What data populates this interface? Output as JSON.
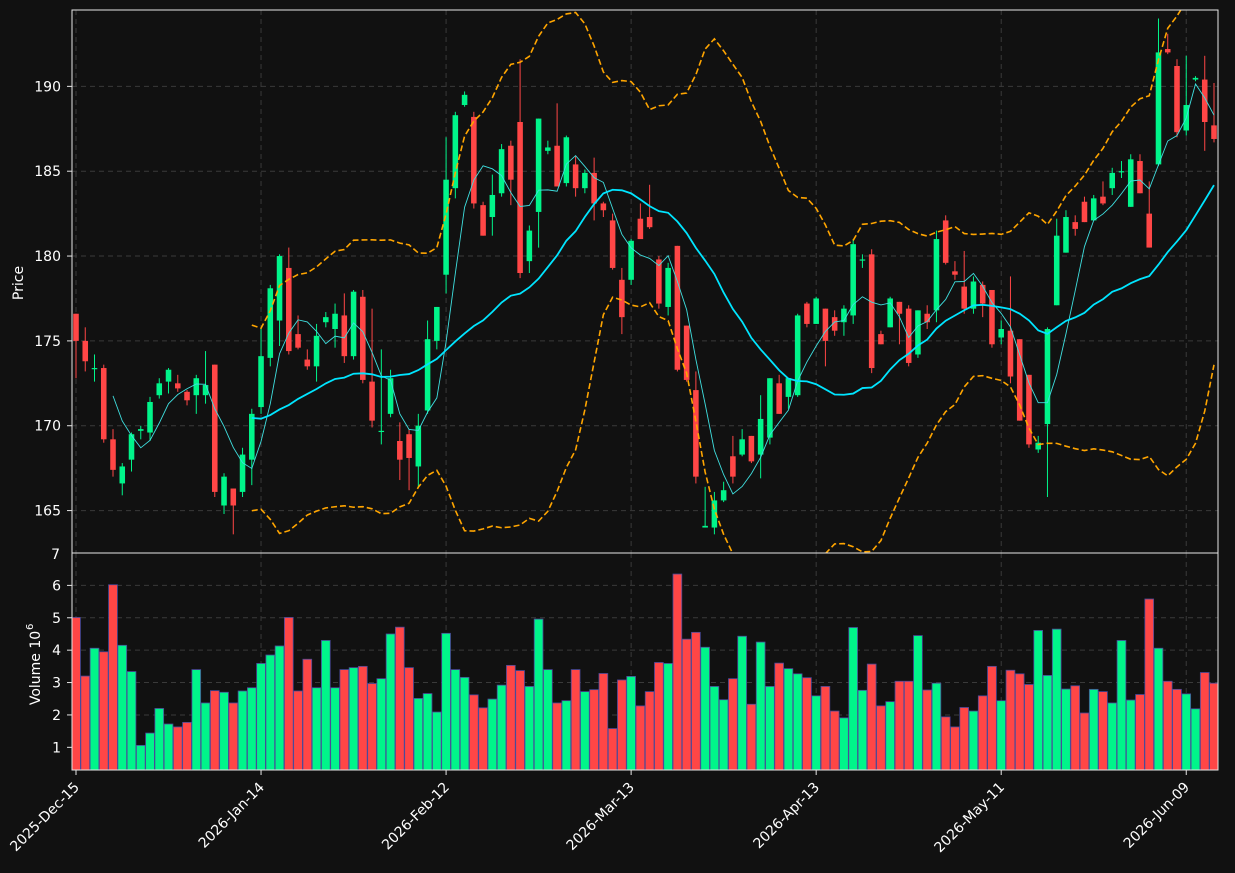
{
  "chart_data": {
    "type": "candlestick",
    "up_color": "#00f58a",
    "down_color": "#ff4646",
    "sma_fast_color": "#3fe0e0",
    "sma_slow_color": "#00e5ff",
    "bollinger_color": "#ffa500",
    "price_panel": {
      "ylabel": "Price",
      "ylim": [
        162.5,
        194.5
      ],
      "yticks": [
        165,
        170,
        175,
        180,
        185,
        190
      ],
      "overflow_tick": "7"
    },
    "volume_panel": {
      "ylabel": "Volume  10",
      "ylabel_exponent": "6",
      "ylim": [
        0.3,
        7.0
      ],
      "yticks": [
        1,
        2,
        3,
        4,
        5,
        6
      ]
    },
    "x_ticks": [
      {
        "label": "2025-Dec-15",
        "index": 0
      },
      {
        "label": "2026-Jan-14",
        "index": 20
      },
      {
        "label": "2026-Feb-12",
        "index": 40
      },
      {
        "label": "2026-Mar-13",
        "index": 60
      },
      {
        "label": "2026-Apr-13",
        "index": 80
      },
      {
        "label": "2026-May-11",
        "index": 100
      },
      {
        "label": "2026-Jun-09",
        "index": 120
      }
    ],
    "ohlc": [
      [
        176.6,
        176.6,
        172.8,
        175.0
      ],
      [
        175.0,
        175.8,
        173.2,
        173.8
      ],
      [
        173.4,
        174.2,
        172.6,
        173.4
      ],
      [
        173.4,
        173.6,
        169.0,
        169.2
      ],
      [
        169.2,
        169.8,
        167.0,
        167.4
      ],
      [
        166.6,
        167.8,
        165.9,
        167.6
      ],
      [
        168.0,
        169.6,
        167.3,
        169.5
      ],
      [
        169.7,
        170.0,
        169.2,
        169.8
      ],
      [
        169.6,
        171.7,
        169.1,
        171.4
      ],
      [
        171.8,
        172.8,
        171.6,
        172.5
      ],
      [
        172.6,
        173.4,
        171.9,
        173.3
      ],
      [
        172.5,
        173.0,
        172.0,
        172.2
      ],
      [
        172.0,
        172.1,
        171.2,
        171.5
      ],
      [
        171.8,
        173.0,
        170.7,
        172.8
      ],
      [
        171.8,
        174.4,
        171.3,
        172.4
      ],
      [
        173.6,
        173.6,
        165.8,
        166.1
      ],
      [
        165.3,
        167.2,
        164.8,
        167.0
      ],
      [
        166.3,
        166.3,
        163.6,
        165.3
      ],
      [
        166.1,
        168.7,
        165.8,
        168.3
      ],
      [
        168.0,
        171.0,
        166.5,
        170.7
      ],
      [
        171.1,
        175.8,
        170.7,
        174.1
      ],
      [
        174.0,
        178.3,
        173.5,
        178.1
      ],
      [
        176.2,
        180.1,
        174.7,
        180.0
      ],
      [
        179.3,
        180.5,
        174.2,
        174.4
      ],
      [
        175.4,
        176.5,
        174.5,
        174.6
      ],
      [
        173.9,
        174.5,
        173.3,
        173.5
      ],
      [
        173.5,
        176.0,
        172.6,
        175.3
      ],
      [
        176.1,
        176.7,
        175.8,
        176.4
      ],
      [
        175.7,
        177.2,
        174.6,
        176.6
      ],
      [
        176.5,
        177.8,
        173.7,
        174.1
      ],
      [
        174.1,
        178.0,
        173.9,
        177.9
      ],
      [
        177.6,
        178.0,
        172.5,
        172.7
      ],
      [
        172.6,
        176.9,
        169.9,
        170.3
      ],
      [
        169.7,
        174.5,
        168.9,
        169.7
      ],
      [
        170.7,
        173.3,
        170.5,
        172.8
      ],
      [
        169.1,
        170.2,
        166.8,
        168.0
      ],
      [
        169.5,
        169.8,
        166.2,
        168.1
      ],
      [
        167.6,
        170.7,
        166.4,
        170.0
      ],
      [
        170.9,
        176.2,
        170.7,
        175.1
      ],
      [
        175.0,
        177.0,
        174.5,
        177.0
      ],
      [
        178.9,
        187.0,
        177.8,
        184.5
      ],
      [
        184.0,
        188.5,
        183.4,
        188.3
      ],
      [
        188.9,
        189.7,
        188.8,
        189.5
      ],
      [
        188.2,
        188.5,
        182.8,
        183.1
      ],
      [
        183.0,
        183.2,
        181.2,
        181.2
      ],
      [
        182.3,
        184.8,
        181.2,
        183.6
      ],
      [
        183.7,
        186.6,
        183.5,
        186.3
      ],
      [
        186.5,
        186.8,
        183.0,
        184.5
      ],
      [
        187.9,
        191.6,
        178.7,
        179.0
      ],
      [
        179.7,
        181.8,
        179.0,
        181.5
      ],
      [
        182.6,
        188.1,
        180.5,
        188.1
      ],
      [
        186.2,
        186.8,
        186.0,
        186.4
      ],
      [
        186.5,
        189.0,
        184.1,
        184.1
      ],
      [
        184.3,
        187.1,
        184.1,
        187.0
      ],
      [
        185.4,
        185.9,
        183.5,
        184.0
      ],
      [
        184.0,
        185.1,
        183.7,
        184.9
      ],
      [
        184.9,
        185.8,
        182.1,
        183.1
      ],
      [
        183.1,
        183.2,
        182.3,
        182.7
      ],
      [
        182.1,
        182.5,
        179.2,
        179.3
      ],
      [
        178.6,
        179.3,
        175.4,
        176.4
      ],
      [
        178.6,
        181.0,
        178.3,
        180.9
      ],
      [
        182.2,
        183.1,
        181.1,
        181.0
      ],
      [
        182.3,
        184.2,
        181.6,
        181.7
      ],
      [
        179.8,
        180.0,
        176.9,
        177.2
      ],
      [
        177.0,
        179.6,
        176.5,
        179.3
      ],
      [
        180.6,
        180.6,
        173.2,
        173.3
      ],
      [
        175.9,
        175.9,
        172.6,
        172.7
      ],
      [
        172.1,
        173.2,
        166.6,
        167.0
      ],
      [
        164.0,
        166.4,
        164.0,
        164.1
      ],
      [
        164.0,
        166.1,
        163.6,
        165.6
      ],
      [
        165.6,
        166.7,
        165.5,
        166.2
      ],
      [
        168.2,
        169.4,
        166.6,
        167.0
      ],
      [
        168.3,
        169.8,
        168.2,
        169.2
      ],
      [
        169.4,
        169.4,
        167.8,
        167.9
      ],
      [
        168.3,
        171.8,
        166.9,
        170.4
      ],
      [
        169.3,
        172.8,
        168.9,
        172.8
      ],
      [
        172.5,
        173.0,
        170.7,
        170.7
      ],
      [
        171.7,
        172.8,
        171.0,
        172.8
      ],
      [
        171.8,
        176.6,
        171.7,
        176.5
      ],
      [
        177.2,
        177.3,
        175.8,
        176.0
      ],
      [
        176.0,
        177.6,
        176.0,
        177.5
      ],
      [
        176.9,
        176.9,
        173.5,
        175.0
      ],
      [
        176.4,
        176.8,
        175.3,
        175.6
      ],
      [
        176.1,
        177.1,
        175.3,
        176.9
      ],
      [
        176.5,
        181.0,
        176.0,
        180.7
      ],
      [
        179.8,
        180.1,
        179.3,
        179.8
      ],
      [
        180.1,
        180.4,
        173.1,
        173.4
      ],
      [
        175.4,
        175.6,
        174.8,
        174.8
      ],
      [
        175.8,
        177.6,
        175.8,
        177.5
      ],
      [
        177.3,
        177.3,
        174.8,
        176.6
      ],
      [
        176.9,
        177.1,
        173.5,
        173.7
      ],
      [
        174.2,
        176.8,
        174.0,
        176.8
      ],
      [
        176.6,
        177.1,
        175.7,
        176.1
      ],
      [
        176.8,
        181.5,
        176.1,
        181.0
      ],
      [
        182.1,
        182.4,
        179.5,
        179.6
      ],
      [
        179.1,
        179.7,
        178.6,
        178.9
      ],
      [
        178.2,
        180.3,
        176.6,
        176.9
      ],
      [
        176.9,
        178.8,
        176.6,
        178.5
      ],
      [
        178.3,
        178.5,
        176.4,
        177.2
      ],
      [
        178.0,
        178.0,
        174.6,
        174.8
      ],
      [
        175.2,
        176.2,
        174.8,
        175.7
      ],
      [
        175.6,
        178.8,
        172.5,
        172.9
      ],
      [
        175.1,
        175.1,
        170.3,
        170.3
      ],
      [
        173.0,
        173.0,
        168.7,
        168.9
      ],
      [
        168.6,
        169.4,
        168.4,
        169.0
      ],
      [
        170.1,
        175.8,
        165.8,
        175.7
      ],
      [
        177.1,
        182.2,
        177.1,
        181.2
      ],
      [
        180.2,
        182.7,
        180.2,
        182.3
      ],
      [
        182.0,
        182.4,
        181.2,
        181.6
      ],
      [
        183.2,
        183.5,
        182.0,
        182.0
      ],
      [
        182.1,
        183.6,
        182.1,
        183.4
      ],
      [
        183.5,
        184.4,
        183.0,
        183.1
      ],
      [
        184.0,
        185.2,
        183.6,
        184.9
      ],
      [
        185.0,
        185.6,
        184.6,
        185.0
      ],
      [
        182.9,
        186.0,
        182.9,
        185.7
      ],
      [
        185.6,
        186.0,
        183.7,
        183.7
      ],
      [
        182.5,
        184.4,
        180.5,
        180.5
      ],
      [
        185.4,
        194.0,
        185.3,
        192.0
      ],
      [
        192.2,
        193.1,
        191.9,
        192.0
      ],
      [
        191.2,
        191.6,
        187.0,
        187.3
      ],
      [
        187.4,
        191.8,
        187.1,
        188.9
      ],
      [
        190.4,
        190.6,
        190.3,
        190.5
      ],
      [
        190.4,
        191.8,
        186.2,
        187.9
      ],
      [
        187.7,
        190.2,
        186.7,
        186.9
      ]
    ],
    "volume_millions": [
      5.01,
      3.2,
      4.06,
      3.95,
      6.02,
      4.15,
      3.34,
      1.06,
      1.44,
      2.2,
      1.72,
      1.63,
      1.77,
      3.4,
      2.37,
      2.75,
      2.7,
      2.37,
      2.74,
      2.84,
      3.59,
      3.85,
      4.13,
      5.01,
      2.74,
      3.72,
      2.84,
      4.3,
      2.84,
      3.4,
      3.46,
      3.5,
      2.97,
      3.12,
      4.5,
      4.71,
      3.46,
      2.51,
      2.66,
      2.09,
      4.52,
      3.4,
      3.16,
      2.62,
      2.22,
      2.49,
      2.92,
      3.53,
      3.37,
      2.88,
      4.96,
      3.4,
      2.37,
      2.44,
      3.4,
      2.72,
      2.78,
      3.28,
      1.58,
      3.08,
      3.19,
      2.28,
      2.72,
      3.62,
      3.59,
      6.35,
      4.34,
      4.55,
      4.09,
      2.88,
      2.47,
      3.12,
      4.43,
      2.33,
      4.25,
      2.88,
      3.6,
      3.43,
      3.27,
      3.15,
      2.59,
      2.88,
      2.12,
      1.91,
      4.7,
      2.76,
      3.57,
      2.28,
      2.41,
      3.04,
      3.04,
      4.45,
      2.77,
      2.98,
      1.94,
      1.63,
      2.23,
      2.12,
      2.59,
      3.5,
      2.44,
      3.38,
      3.27,
      2.94,
      4.61,
      3.22,
      4.65,
      2.8,
      2.9,
      2.06,
      2.79,
      2.72,
      2.37,
      4.3,
      2.46,
      2.63,
      5.58,
      4.06,
      3.04,
      2.79,
      2.65,
      2.19,
      3.31,
      2.98
    ],
    "sma_fast_period": 5,
    "sma_slow_period": 20,
    "bollinger": {
      "period": 20,
      "num_std": 2
    }
  }
}
